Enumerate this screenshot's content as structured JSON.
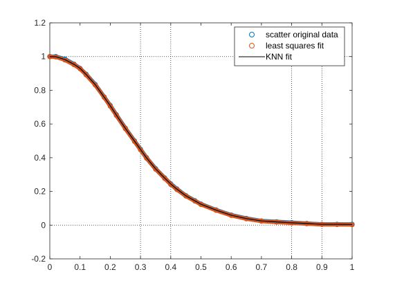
{
  "chart_data": {
    "type": "scatter",
    "title": "",
    "xlabel": "",
    "ylabel": "",
    "xlim": [
      0,
      1
    ],
    "ylim": [
      -0.2,
      1.2
    ],
    "x_ticks": [
      0,
      0.1,
      0.2,
      0.3,
      0.4,
      0.5,
      0.6,
      0.7,
      0.8,
      0.9,
      1
    ],
    "x_tick_labels": [
      "0",
      "0.1",
      "0.2",
      "0.3",
      "0.4",
      "0.5",
      "0.6",
      "0.7",
      "0.8",
      "0.9",
      "1"
    ],
    "y_ticks": [
      -0.2,
      0,
      0.2,
      0.4,
      0.6,
      0.8,
      1,
      1.2
    ],
    "y_tick_labels": [
      "-0.2",
      "0",
      "0.2",
      "0.4",
      "0.6",
      "0.8",
      "1",
      "1.2"
    ],
    "grid_x": [
      0.3,
      0.4,
      0.8,
      0.9
    ],
    "grid_y": [
      0,
      1
    ],
    "grid": "partial dotted",
    "legend_position": "top-right",
    "series": [
      {
        "name": "scatter original data",
        "marker": "circle-open",
        "color": "#0072bd",
        "x": [
          0,
          0.02,
          0.05,
          0.08,
          0.1,
          0.12,
          0.15,
          0.18,
          0.2,
          0.22,
          0.25,
          0.28,
          0.3,
          0.32,
          0.35,
          0.38,
          0.4,
          0.42,
          0.45,
          0.48,
          0.5,
          0.55,
          0.6,
          0.65,
          0.7,
          0.75,
          0.8,
          0.85,
          0.9,
          0.95,
          1
        ],
        "y": [
          1.0,
          1.0,
          0.985,
          0.955,
          0.93,
          0.895,
          0.835,
          0.76,
          0.71,
          0.655,
          0.575,
          0.5,
          0.45,
          0.4,
          0.335,
          0.28,
          0.245,
          0.215,
          0.175,
          0.145,
          0.125,
          0.09,
          0.06,
          0.04,
          0.025,
          0.02,
          0.015,
          0.01,
          0.005,
          0.005,
          0.005
        ]
      },
      {
        "name": "least squares fit",
        "marker": "circle-open",
        "color": "#d95319",
        "x": [
          0,
          0.02,
          0.05,
          0.08,
          0.1,
          0.12,
          0.15,
          0.18,
          0.2,
          0.22,
          0.25,
          0.28,
          0.3,
          0.32,
          0.35,
          0.38,
          0.4,
          0.42,
          0.45,
          0.48,
          0.5,
          0.55,
          0.6,
          0.65,
          0.7,
          0.75,
          0.8,
          0.85,
          0.9,
          0.95,
          1
        ],
        "y": [
          1.0,
          0.998,
          0.98,
          0.952,
          0.928,
          0.892,
          0.832,
          0.758,
          0.706,
          0.651,
          0.572,
          0.497,
          0.447,
          0.397,
          0.332,
          0.277,
          0.242,
          0.212,
          0.173,
          0.143,
          0.123,
          0.088,
          0.058,
          0.038,
          0.024,
          0.018,
          0.013,
          0.009,
          0.005,
          0.004,
          0.003
        ]
      },
      {
        "name": "KNN fit",
        "marker": "line",
        "color": "#000000",
        "x": [
          0,
          0.02,
          0.05,
          0.08,
          0.1,
          0.12,
          0.15,
          0.18,
          0.2,
          0.22,
          0.25,
          0.28,
          0.3,
          0.32,
          0.35,
          0.38,
          0.4,
          0.42,
          0.45,
          0.48,
          0.5,
          0.55,
          0.6,
          0.65,
          0.7,
          0.75,
          0.8,
          0.85,
          0.9,
          0.95,
          1
        ],
        "y": [
          1.0,
          0.999,
          0.982,
          0.954,
          0.93,
          0.894,
          0.834,
          0.759,
          0.708,
          0.653,
          0.574,
          0.499,
          0.449,
          0.399,
          0.334,
          0.279,
          0.244,
          0.214,
          0.174,
          0.144,
          0.124,
          0.089,
          0.059,
          0.039,
          0.025,
          0.019,
          0.014,
          0.01,
          0.005,
          0.005,
          0.004
        ]
      }
    ]
  }
}
